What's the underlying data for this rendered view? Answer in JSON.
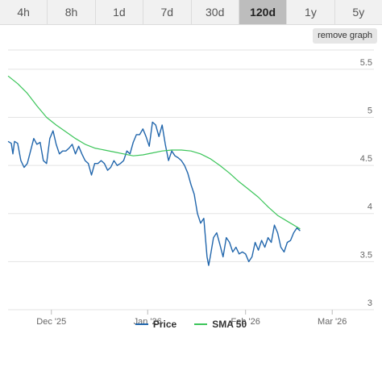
{
  "tabs": [
    {
      "label": "4h"
    },
    {
      "label": "8h"
    },
    {
      "label": "1d"
    },
    {
      "label": "7d"
    },
    {
      "label": "30d"
    },
    {
      "label": "120d",
      "active": true
    },
    {
      "label": "1y"
    },
    {
      "label": "5y"
    }
  ],
  "remove_graph_label": "remove graph",
  "colors": {
    "price": "#2166ac",
    "sma": "#3cc55a",
    "grid": "#e3e3e3"
  },
  "chart_data": {
    "type": "line",
    "x_ticks": [
      "Dec '25",
      "Jan '26",
      "Feb '26",
      "Mar '26"
    ],
    "x_tick_positions": [
      5.5,
      35.5,
      66,
      93
    ],
    "xlim": [
      -8,
      106
    ],
    "y_ticks": [
      "3",
      "3.5",
      "4",
      "4.5",
      "5",
      "5.5"
    ],
    "ylim": [
      3,
      5.7
    ],
    "legend_position": "bottom-center",
    "series": [
      {
        "name": "Price",
        "values": [
          [
            -8,
            4.75
          ],
          [
            -7,
            4.73
          ],
          [
            -6.5,
            4.62
          ],
          [
            -6,
            4.75
          ],
          [
            -5,
            4.73
          ],
          [
            -4,
            4.55
          ],
          [
            -3,
            4.48
          ],
          [
            -2,
            4.52
          ],
          [
            -1,
            4.65
          ],
          [
            0,
            4.78
          ],
          [
            1,
            4.72
          ],
          [
            2,
            4.74
          ],
          [
            3,
            4.55
          ],
          [
            4,
            4.52
          ],
          [
            5,
            4.78
          ],
          [
            6,
            4.86
          ],
          [
            7,
            4.72
          ],
          [
            8,
            4.62
          ],
          [
            9,
            4.65
          ],
          [
            10,
            4.65
          ],
          [
            11,
            4.68
          ],
          [
            12,
            4.72
          ],
          [
            13,
            4.62
          ],
          [
            14,
            4.7
          ],
          [
            15,
            4.62
          ],
          [
            16,
            4.55
          ],
          [
            17,
            4.52
          ],
          [
            18,
            4.4
          ],
          [
            19,
            4.52
          ],
          [
            20,
            4.52
          ],
          [
            21,
            4.55
          ],
          [
            22,
            4.52
          ],
          [
            23,
            4.45
          ],
          [
            24,
            4.48
          ],
          [
            25,
            4.55
          ],
          [
            26,
            4.5
          ],
          [
            27,
            4.52
          ],
          [
            28,
            4.55
          ],
          [
            29,
            4.65
          ],
          [
            30,
            4.62
          ],
          [
            31,
            4.74
          ],
          [
            32,
            4.82
          ],
          [
            33,
            4.82
          ],
          [
            34,
            4.88
          ],
          [
            35,
            4.8
          ],
          [
            36,
            4.7
          ],
          [
            37,
            4.95
          ],
          [
            38,
            4.92
          ],
          [
            39,
            4.8
          ],
          [
            40,
            4.92
          ],
          [
            41,
            4.72
          ],
          [
            42,
            4.55
          ],
          [
            43,
            4.65
          ],
          [
            44,
            4.6
          ],
          [
            45,
            4.58
          ],
          [
            46,
            4.55
          ],
          [
            47,
            4.5
          ],
          [
            48,
            4.42
          ],
          [
            49,
            4.3
          ],
          [
            50,
            4.2
          ],
          [
            51,
            4.0
          ],
          [
            52,
            3.9
          ],
          [
            53,
            3.95
          ],
          [
            54,
            3.55
          ],
          [
            54.5,
            3.46
          ],
          [
            55,
            3.55
          ],
          [
            56,
            3.75
          ],
          [
            57,
            3.8
          ],
          [
            58,
            3.68
          ],
          [
            59,
            3.55
          ],
          [
            60,
            3.75
          ],
          [
            61,
            3.7
          ],
          [
            62,
            3.6
          ],
          [
            63,
            3.65
          ],
          [
            64,
            3.58
          ],
          [
            65,
            3.6
          ],
          [
            66,
            3.58
          ],
          [
            67,
            3.5
          ],
          [
            68,
            3.55
          ],
          [
            69,
            3.7
          ],
          [
            70,
            3.62
          ],
          [
            71,
            3.72
          ],
          [
            72,
            3.65
          ],
          [
            73,
            3.75
          ],
          [
            74,
            3.7
          ],
          [
            75,
            3.88
          ],
          [
            76,
            3.8
          ],
          [
            77,
            3.65
          ],
          [
            78,
            3.6
          ],
          [
            79,
            3.7
          ],
          [
            80,
            3.72
          ],
          [
            81,
            3.8
          ],
          [
            82,
            3.85
          ],
          [
            83,
            3.82
          ]
        ]
      },
      {
        "name": "SMA 50",
        "values": [
          [
            -8,
            5.43
          ],
          [
            -5,
            5.35
          ],
          [
            -2,
            5.25
          ],
          [
            1,
            5.12
          ],
          [
            4,
            5.0
          ],
          [
            7,
            4.92
          ],
          [
            10,
            4.85
          ],
          [
            13,
            4.78
          ],
          [
            16,
            4.72
          ],
          [
            19,
            4.68
          ],
          [
            22,
            4.66
          ],
          [
            25,
            4.64
          ],
          [
            28,
            4.62
          ],
          [
            31,
            4.6
          ],
          [
            34,
            4.61
          ],
          [
            37,
            4.63
          ],
          [
            40,
            4.65
          ],
          [
            43,
            4.66
          ],
          [
            46,
            4.66
          ],
          [
            49,
            4.65
          ],
          [
            52,
            4.62
          ],
          [
            55,
            4.57
          ],
          [
            58,
            4.5
          ],
          [
            61,
            4.42
          ],
          [
            64,
            4.33
          ],
          [
            67,
            4.25
          ],
          [
            70,
            4.17
          ],
          [
            73,
            4.07
          ],
          [
            76,
            3.98
          ],
          [
            79,
            3.92
          ],
          [
            82,
            3.86
          ],
          [
            83,
            3.84
          ]
        ]
      }
    ]
  }
}
